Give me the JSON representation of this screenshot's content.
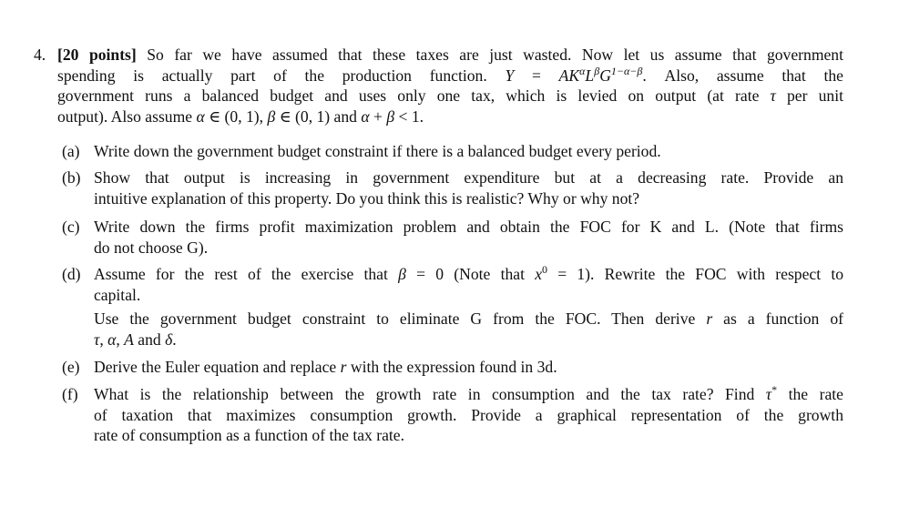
{
  "question": {
    "number": "4.",
    "lines": [
      [
        {
          "t": "[20 points]",
          "s": "b"
        },
        {
          "t": " So far we have assumed that these taxes are just wasted. Now let us assume that government"
        }
      ],
      [
        {
          "t": "spending is actually part of the production function.  "
        },
        {
          "t": "Y",
          "s": "i"
        },
        {
          "t": " = "
        },
        {
          "t": "AK",
          "s": "i"
        },
        {
          "t": "α",
          "s": "supi"
        },
        {
          "t": "L",
          "s": "i"
        },
        {
          "t": "β",
          "s": "supi"
        },
        {
          "t": "G",
          "s": "i"
        },
        {
          "t": "1−α−β",
          "s": "supi"
        },
        {
          "t": ".  Also, assume that the"
        }
      ],
      [
        {
          "t": "government runs a balanced budget and uses only one tax, which is levied on output (at rate "
        },
        {
          "t": "τ",
          "s": "i"
        },
        {
          "t": " per unit"
        }
      ],
      [
        {
          "t": "output). Also assume "
        },
        {
          "t": "α",
          "s": "i"
        },
        {
          "t": " ∈ (0, 1), "
        },
        {
          "t": "β",
          "s": "i"
        },
        {
          "t": " ∈ (0, 1) and "
        },
        {
          "t": "α",
          "s": "i"
        },
        {
          "t": " + "
        },
        {
          "t": "β",
          "s": "i"
        },
        {
          "t": " < 1."
        }
      ]
    ]
  },
  "items": [
    {
      "label": "(a)",
      "lines": [
        [
          {
            "t": "Write down the government budget constraint if there is a balanced budget every period."
          }
        ]
      ]
    },
    {
      "label": "(b)",
      "lines": [
        [
          {
            "t": "Show that output is increasing in government expenditure but at a decreasing rate.  Provide an"
          }
        ],
        [
          {
            "t": "intuitive explanation of this property. Do you think this is realistic? Why or why not?"
          }
        ]
      ]
    },
    {
      "label": "(c)",
      "lines": [
        [
          {
            "t": "Write down the firms profit maximization problem and obtain the FOC for K and L. (Note that firms"
          }
        ],
        [
          {
            "t": "do not choose G)."
          }
        ]
      ]
    },
    {
      "label": "(d)",
      "lines": [
        [
          {
            "t": "Assume for the rest of the exercise that "
          },
          {
            "t": "β",
            "s": "i"
          },
          {
            "t": " = 0 (Note that "
          },
          {
            "t": "x",
            "s": "i"
          },
          {
            "t": "0",
            "s": "sup"
          },
          {
            "t": " = 1). Rewrite the FOC with respect to"
          }
        ],
        [
          {
            "t": "capital."
          }
        ]
      ]
    },
    {
      "label": "",
      "lines": [
        [
          {
            "t": "Use the government budget constraint to eliminate G from the FOC. Then derive "
          },
          {
            "t": "r",
            "s": "i"
          },
          {
            "t": " as a function of"
          }
        ],
        [
          {
            "t": "τ",
            "s": "i"
          },
          {
            "t": ", "
          },
          {
            "t": "α",
            "s": "i"
          },
          {
            "t": ", "
          },
          {
            "t": "A",
            "s": "i"
          },
          {
            "t": " and "
          },
          {
            "t": "δ",
            "s": "i"
          },
          {
            "t": "."
          }
        ]
      ]
    },
    {
      "label": "(e)",
      "lines": [
        [
          {
            "t": "Derive the Euler equation and replace "
          },
          {
            "t": "r",
            "s": "i"
          },
          {
            "t": " with the expression found in 3d."
          }
        ]
      ]
    },
    {
      "label": "(f)",
      "lines": [
        [
          {
            "t": "What is the relationship between the growth rate in consumption and the tax rate? Find "
          },
          {
            "t": "τ",
            "s": "i"
          },
          {
            "t": "*",
            "s": "sup"
          },
          {
            "t": " the rate"
          }
        ],
        [
          {
            "t": "of taxation that maximizes consumption growth. Provide a graphical representation of the growth"
          }
        ],
        [
          {
            "t": "rate of consumption as a function of the tax rate."
          }
        ]
      ]
    }
  ]
}
